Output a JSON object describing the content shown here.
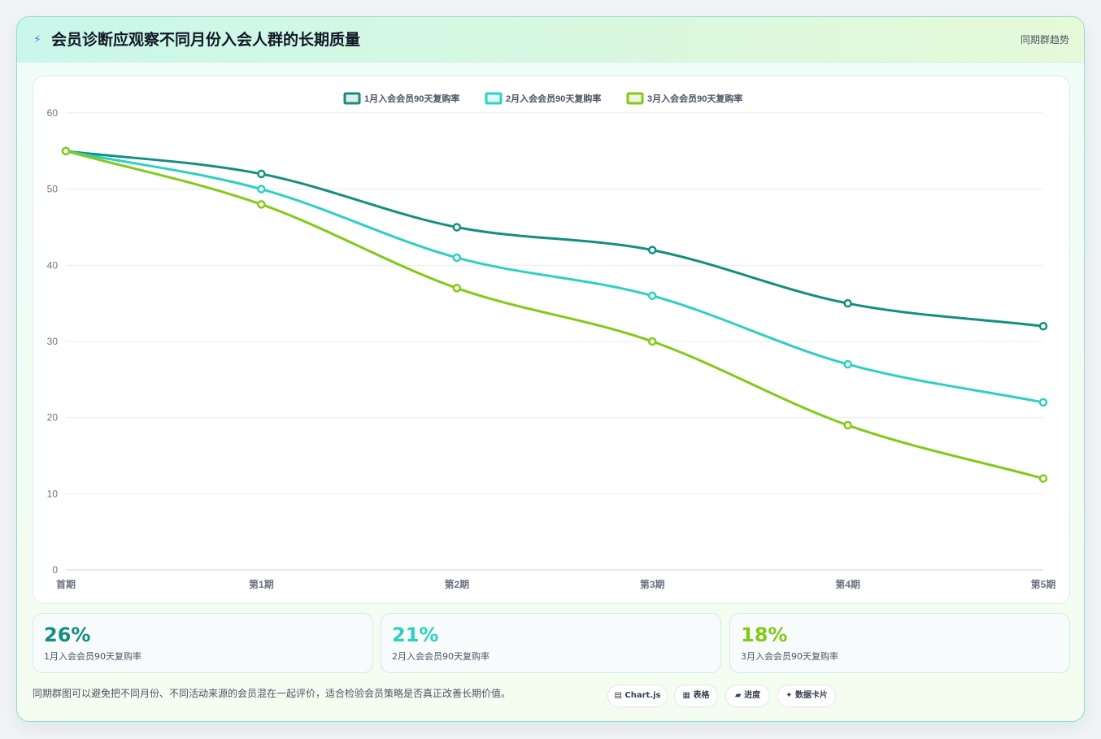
{
  "header": {
    "icon": "lightning-icon",
    "title": "会员诊断应观察不同月份入会人群的长期质量",
    "tag": "同期群趋势"
  },
  "chart_data": {
    "type": "line",
    "categories": [
      "首期",
      "第1期",
      "第2期",
      "第3期",
      "第4期",
      "第5期"
    ],
    "series": [
      {
        "name": "1月入会会员90天复购率",
        "color": "#138e7f",
        "values": [
          55,
          52,
          45,
          42,
          35,
          32
        ]
      },
      {
        "name": "2月入会会员90天复购率",
        "color": "#2ed0c1",
        "values": [
          55,
          50,
          41,
          36,
          27,
          22
        ]
      },
      {
        "name": "3月入会会员90天复购率",
        "color": "#84c918",
        "values": [
          55,
          48,
          37,
          30,
          19,
          12
        ]
      }
    ],
    "ylim": [
      0,
      60
    ],
    "yticks": [
      0,
      10,
      20,
      30,
      40,
      50,
      60
    ],
    "grid": true,
    "legend": "top-center",
    "line_style": "smooth"
  },
  "stats": [
    {
      "value": "26%",
      "label": "1月入会会员90天复购率",
      "color": "#138e7f"
    },
    {
      "value": "21%",
      "label": "2月入会会员90天复购率",
      "color": "#2ed0c1"
    },
    {
      "value": "18%",
      "label": "3月入会会员90天复购率",
      "color": "#84c918"
    }
  ],
  "footnote": "同期群图可以避免把不同月份、不同活动来源的会员混在一起评价，适合检验会员策略是否真正改善长期价值。",
  "pills": [
    {
      "icon": "chart-icon",
      "glyph": "▤",
      "label": "Chart.js"
    },
    {
      "icon": "table-icon",
      "glyph": "▦",
      "label": "表格"
    },
    {
      "icon": "progress-icon",
      "glyph": "▰",
      "label": "进度"
    },
    {
      "icon": "sparkle-icon",
      "glyph": "✦",
      "label": "数据卡片"
    }
  ]
}
